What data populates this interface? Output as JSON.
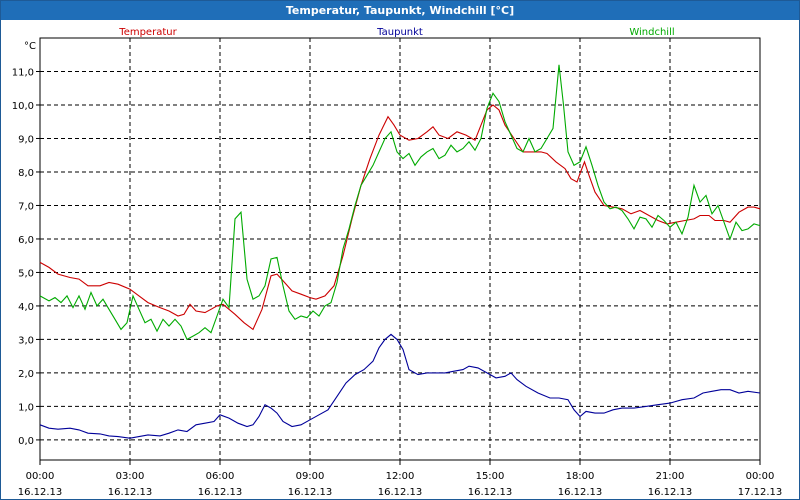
{
  "window": {
    "title": "Temperatur, Taupunkt, Windchill [°C]"
  },
  "colors": {
    "title_bg": "#1f6eb8",
    "temperatur": "#cc0000",
    "taupunkt": "#000099",
    "windchill": "#00aa00",
    "grid": "#000000"
  },
  "chart_data": {
    "type": "line",
    "title": "Temperatur, Taupunkt, Windchill [°C]",
    "ylabel": "°C",
    "ylim": [
      -0.6,
      12.0
    ],
    "xlim": [
      0,
      24
    ],
    "grid": true,
    "legend_placement": "top",
    "y_ticks": [
      {
        "value": 0.0,
        "label": "0,0"
      },
      {
        "value": 1.0,
        "label": "1,0"
      },
      {
        "value": 2.0,
        "label": "2,0"
      },
      {
        "value": 3.0,
        "label": "3,0"
      },
      {
        "value": 4.0,
        "label": "4,0"
      },
      {
        "value": 5.0,
        "label": "5,0"
      },
      {
        "value": 6.0,
        "label": "6,0"
      },
      {
        "value": 7.0,
        "label": "7,0"
      },
      {
        "value": 8.0,
        "label": "8,0"
      },
      {
        "value": 9.0,
        "label": "9,0"
      },
      {
        "value": 10.0,
        "label": "10,0"
      },
      {
        "value": 11.0,
        "label": "11,0"
      }
    ],
    "x_ticks": [
      {
        "value": 0,
        "time": "00:00",
        "date": "16.12.13"
      },
      {
        "value": 3,
        "time": "03:00",
        "date": "16.12.13"
      },
      {
        "value": 6,
        "time": "06:00",
        "date": "16.12.13"
      },
      {
        "value": 9,
        "time": "09:00",
        "date": "16.12.13"
      },
      {
        "value": 12,
        "time": "12:00",
        "date": "16.12.13"
      },
      {
        "value": 15,
        "time": "15:00",
        "date": "16.12.13"
      },
      {
        "value": 18,
        "time": "18:00",
        "date": "16.12.13"
      },
      {
        "value": 21,
        "time": "21:00",
        "date": "16.12.13"
      },
      {
        "value": 24,
        "time": "00:00",
        "date": "17.12.13"
      }
    ],
    "x_unit": "hours since 16.12.13 00:00",
    "series": [
      {
        "name": "Temperatur",
        "color": "#cc0000",
        "points": [
          [
            0,
            5.3
          ],
          [
            0.3,
            5.15
          ],
          [
            0.6,
            4.95
          ],
          [
            1.0,
            4.85
          ],
          [
            1.3,
            4.8
          ],
          [
            1.6,
            4.6
          ],
          [
            2.0,
            4.6
          ],
          [
            2.3,
            4.7
          ],
          [
            2.6,
            4.65
          ],
          [
            3.0,
            4.5
          ],
          [
            3.3,
            4.3
          ],
          [
            3.6,
            4.1
          ],
          [
            4.0,
            3.95
          ],
          [
            4.3,
            3.85
          ],
          [
            4.6,
            3.7
          ],
          [
            4.8,
            3.75
          ],
          [
            5.0,
            4.05
          ],
          [
            5.2,
            3.85
          ],
          [
            5.5,
            3.8
          ],
          [
            5.7,
            3.9
          ],
          [
            5.9,
            4.0
          ],
          [
            6.1,
            4.05
          ],
          [
            6.3,
            3.9
          ],
          [
            6.5,
            3.75
          ],
          [
            6.8,
            3.5
          ],
          [
            7.1,
            3.3
          ],
          [
            7.4,
            3.9
          ],
          [
            7.7,
            4.9
          ],
          [
            7.9,
            4.95
          ],
          [
            8.1,
            4.75
          ],
          [
            8.4,
            4.45
          ],
          [
            8.7,
            4.35
          ],
          [
            9.0,
            4.25
          ],
          [
            9.2,
            4.2
          ],
          [
            9.5,
            4.3
          ],
          [
            9.8,
            4.6
          ],
          [
            10.1,
            5.5
          ],
          [
            10.4,
            6.6
          ],
          [
            10.7,
            7.6
          ],
          [
            11.0,
            8.4
          ],
          [
            11.3,
            9.1
          ],
          [
            11.6,
            9.65
          ],
          [
            11.8,
            9.4
          ],
          [
            12.0,
            9.1
          ],
          [
            12.3,
            8.95
          ],
          [
            12.6,
            9.0
          ],
          [
            12.9,
            9.2
          ],
          [
            13.1,
            9.35
          ],
          [
            13.3,
            9.1
          ],
          [
            13.6,
            9.0
          ],
          [
            13.9,
            9.2
          ],
          [
            14.2,
            9.1
          ],
          [
            14.5,
            8.95
          ],
          [
            14.7,
            9.4
          ],
          [
            14.9,
            9.85
          ],
          [
            15.1,
            10.0
          ],
          [
            15.3,
            9.85
          ],
          [
            15.5,
            9.4
          ],
          [
            15.8,
            9.0
          ],
          [
            16.1,
            8.6
          ],
          [
            16.4,
            8.6
          ],
          [
            16.7,
            8.6
          ],
          [
            16.9,
            8.55
          ],
          [
            17.2,
            8.3
          ],
          [
            17.5,
            8.1
          ],
          [
            17.7,
            7.8
          ],
          [
            17.9,
            7.7
          ],
          [
            18.0,
            7.95
          ],
          [
            18.15,
            8.3
          ],
          [
            18.3,
            7.9
          ],
          [
            18.5,
            7.4
          ],
          [
            18.8,
            7.0
          ],
          [
            19.1,
            6.95
          ],
          [
            19.4,
            6.9
          ],
          [
            19.7,
            6.75
          ],
          [
            20.0,
            6.85
          ],
          [
            20.3,
            6.7
          ],
          [
            20.6,
            6.55
          ],
          [
            20.9,
            6.45
          ],
          [
            21.2,
            6.5
          ],
          [
            21.5,
            6.55
          ],
          [
            21.8,
            6.6
          ],
          [
            22.0,
            6.7
          ],
          [
            22.3,
            6.7
          ],
          [
            22.5,
            6.55
          ],
          [
            22.8,
            6.55
          ],
          [
            23.0,
            6.5
          ],
          [
            23.3,
            6.8
          ],
          [
            23.6,
            6.95
          ],
          [
            23.8,
            6.95
          ],
          [
            24.0,
            6.9
          ]
        ]
      },
      {
        "name": "Taupunkt",
        "color": "#000099",
        "points": [
          [
            0,
            0.45
          ],
          [
            0.3,
            0.35
          ],
          [
            0.6,
            0.32
          ],
          [
            1.0,
            0.35
          ],
          [
            1.3,
            0.3
          ],
          [
            1.6,
            0.2
          ],
          [
            2.0,
            0.18
          ],
          [
            2.3,
            0.12
          ],
          [
            2.6,
            0.1
          ],
          [
            3.0,
            0.05
          ],
          [
            3.3,
            0.1
          ],
          [
            3.6,
            0.15
          ],
          [
            4.0,
            0.12
          ],
          [
            4.3,
            0.2
          ],
          [
            4.6,
            0.3
          ],
          [
            4.9,
            0.25
          ],
          [
            5.2,
            0.45
          ],
          [
            5.5,
            0.5
          ],
          [
            5.8,
            0.55
          ],
          [
            6.0,
            0.75
          ],
          [
            6.3,
            0.65
          ],
          [
            6.6,
            0.5
          ],
          [
            6.9,
            0.4
          ],
          [
            7.1,
            0.45
          ],
          [
            7.3,
            0.7
          ],
          [
            7.5,
            1.05
          ],
          [
            7.7,
            0.95
          ],
          [
            7.9,
            0.8
          ],
          [
            8.1,
            0.55
          ],
          [
            8.4,
            0.4
          ],
          [
            8.7,
            0.45
          ],
          [
            9.0,
            0.6
          ],
          [
            9.3,
            0.75
          ],
          [
            9.6,
            0.9
          ],
          [
            9.9,
            1.3
          ],
          [
            10.2,
            1.7
          ],
          [
            10.5,
            1.95
          ],
          [
            10.8,
            2.1
          ],
          [
            11.1,
            2.35
          ],
          [
            11.3,
            2.75
          ],
          [
            11.5,
            3.0
          ],
          [
            11.7,
            3.15
          ],
          [
            11.9,
            3.0
          ],
          [
            12.1,
            2.7
          ],
          [
            12.3,
            2.1
          ],
          [
            12.6,
            1.95
          ],
          [
            12.9,
            2.0
          ],
          [
            13.2,
            2.0
          ],
          [
            13.5,
            2.0
          ],
          [
            13.8,
            2.05
          ],
          [
            14.1,
            2.1
          ],
          [
            14.3,
            2.2
          ],
          [
            14.6,
            2.15
          ],
          [
            14.9,
            2.0
          ],
          [
            15.2,
            1.85
          ],
          [
            15.5,
            1.9
          ],
          [
            15.7,
            2.0
          ],
          [
            15.9,
            1.8
          ],
          [
            16.2,
            1.6
          ],
          [
            16.6,
            1.4
          ],
          [
            17.0,
            1.25
          ],
          [
            17.3,
            1.25
          ],
          [
            17.6,
            1.2
          ],
          [
            17.8,
            0.9
          ],
          [
            18.0,
            0.7
          ],
          [
            18.2,
            0.85
          ],
          [
            18.5,
            0.8
          ],
          [
            18.8,
            0.8
          ],
          [
            19.1,
            0.9
          ],
          [
            19.4,
            0.95
          ],
          [
            19.8,
            0.95
          ],
          [
            20.2,
            1.0
          ],
          [
            20.6,
            1.05
          ],
          [
            21.0,
            1.1
          ],
          [
            21.4,
            1.2
          ],
          [
            21.8,
            1.25
          ],
          [
            22.1,
            1.4
          ],
          [
            22.4,
            1.45
          ],
          [
            22.7,
            1.5
          ],
          [
            23.0,
            1.5
          ],
          [
            23.3,
            1.4
          ],
          [
            23.6,
            1.45
          ],
          [
            24.0,
            1.4
          ]
        ]
      },
      {
        "name": "Windchill",
        "color": "#00aa00",
        "points": [
          [
            0,
            4.3
          ],
          [
            0.3,
            4.15
          ],
          [
            0.5,
            4.25
          ],
          [
            0.7,
            4.1
          ],
          [
            0.9,
            4.3
          ],
          [
            1.1,
            3.95
          ],
          [
            1.3,
            4.3
          ],
          [
            1.5,
            3.9
          ],
          [
            1.7,
            4.4
          ],
          [
            1.9,
            4.0
          ],
          [
            2.1,
            4.2
          ],
          [
            2.3,
            3.9
          ],
          [
            2.5,
            3.6
          ],
          [
            2.7,
            3.3
          ],
          [
            2.9,
            3.5
          ],
          [
            3.1,
            4.3
          ],
          [
            3.3,
            3.9
          ],
          [
            3.5,
            3.5
          ],
          [
            3.7,
            3.6
          ],
          [
            3.9,
            3.25
          ],
          [
            4.1,
            3.6
          ],
          [
            4.3,
            3.4
          ],
          [
            4.5,
            3.6
          ],
          [
            4.7,
            3.4
          ],
          [
            4.9,
            3.0
          ],
          [
            5.1,
            3.1
          ],
          [
            5.3,
            3.2
          ],
          [
            5.5,
            3.35
          ],
          [
            5.7,
            3.2
          ],
          [
            5.9,
            3.7
          ],
          [
            6.1,
            4.2
          ],
          [
            6.3,
            3.95
          ],
          [
            6.5,
            6.6
          ],
          [
            6.7,
            6.8
          ],
          [
            6.9,
            4.8
          ],
          [
            7.1,
            4.2
          ],
          [
            7.3,
            4.3
          ],
          [
            7.5,
            4.6
          ],
          [
            7.7,
            5.4
          ],
          [
            7.9,
            5.45
          ],
          [
            8.1,
            4.6
          ],
          [
            8.3,
            3.85
          ],
          [
            8.5,
            3.6
          ],
          [
            8.7,
            3.7
          ],
          [
            8.9,
            3.65
          ],
          [
            9.1,
            3.85
          ],
          [
            9.3,
            3.7
          ],
          [
            9.5,
            4.0
          ],
          [
            9.7,
            4.1
          ],
          [
            9.9,
            4.7
          ],
          [
            10.1,
            5.7
          ],
          [
            10.3,
            6.3
          ],
          [
            10.5,
            7.0
          ],
          [
            10.7,
            7.6
          ],
          [
            10.9,
            7.9
          ],
          [
            11.1,
            8.2
          ],
          [
            11.3,
            8.6
          ],
          [
            11.5,
            9.0
          ],
          [
            11.7,
            9.2
          ],
          [
            11.9,
            8.6
          ],
          [
            12.1,
            8.4
          ],
          [
            12.3,
            8.55
          ],
          [
            12.5,
            8.2
          ],
          [
            12.7,
            8.45
          ],
          [
            12.9,
            8.6
          ],
          [
            13.1,
            8.7
          ],
          [
            13.3,
            8.4
          ],
          [
            13.5,
            8.5
          ],
          [
            13.7,
            8.8
          ],
          [
            13.9,
            8.6
          ],
          [
            14.1,
            8.7
          ],
          [
            14.3,
            8.9
          ],
          [
            14.5,
            8.65
          ],
          [
            14.7,
            9.0
          ],
          [
            14.9,
            9.9
          ],
          [
            15.1,
            10.35
          ],
          [
            15.3,
            10.1
          ],
          [
            15.5,
            9.5
          ],
          [
            15.7,
            9.1
          ],
          [
            15.9,
            8.7
          ],
          [
            16.1,
            8.6
          ],
          [
            16.3,
            9.0
          ],
          [
            16.5,
            8.6
          ],
          [
            16.7,
            8.7
          ],
          [
            16.9,
            9.0
          ],
          [
            17.1,
            9.3
          ],
          [
            17.3,
            11.2
          ],
          [
            17.45,
            10.0
          ],
          [
            17.6,
            8.6
          ],
          [
            17.8,
            8.2
          ],
          [
            18.0,
            8.3
          ],
          [
            18.2,
            8.75
          ],
          [
            18.4,
            8.2
          ],
          [
            18.6,
            7.6
          ],
          [
            18.8,
            7.1
          ],
          [
            19.0,
            6.9
          ],
          [
            19.2,
            6.95
          ],
          [
            19.4,
            6.85
          ],
          [
            19.6,
            6.6
          ],
          [
            19.8,
            6.3
          ],
          [
            20.0,
            6.65
          ],
          [
            20.2,
            6.6
          ],
          [
            20.4,
            6.35
          ],
          [
            20.6,
            6.7
          ],
          [
            20.8,
            6.55
          ],
          [
            21.0,
            6.35
          ],
          [
            21.2,
            6.5
          ],
          [
            21.4,
            6.15
          ],
          [
            21.6,
            6.65
          ],
          [
            21.8,
            7.6
          ],
          [
            22.0,
            7.1
          ],
          [
            22.2,
            7.3
          ],
          [
            22.4,
            6.75
          ],
          [
            22.6,
            7.0
          ],
          [
            22.8,
            6.5
          ],
          [
            23.0,
            6.0
          ],
          [
            23.2,
            6.5
          ],
          [
            23.4,
            6.25
          ],
          [
            23.6,
            6.3
          ],
          [
            23.8,
            6.45
          ],
          [
            24.0,
            6.4
          ]
        ]
      }
    ]
  }
}
